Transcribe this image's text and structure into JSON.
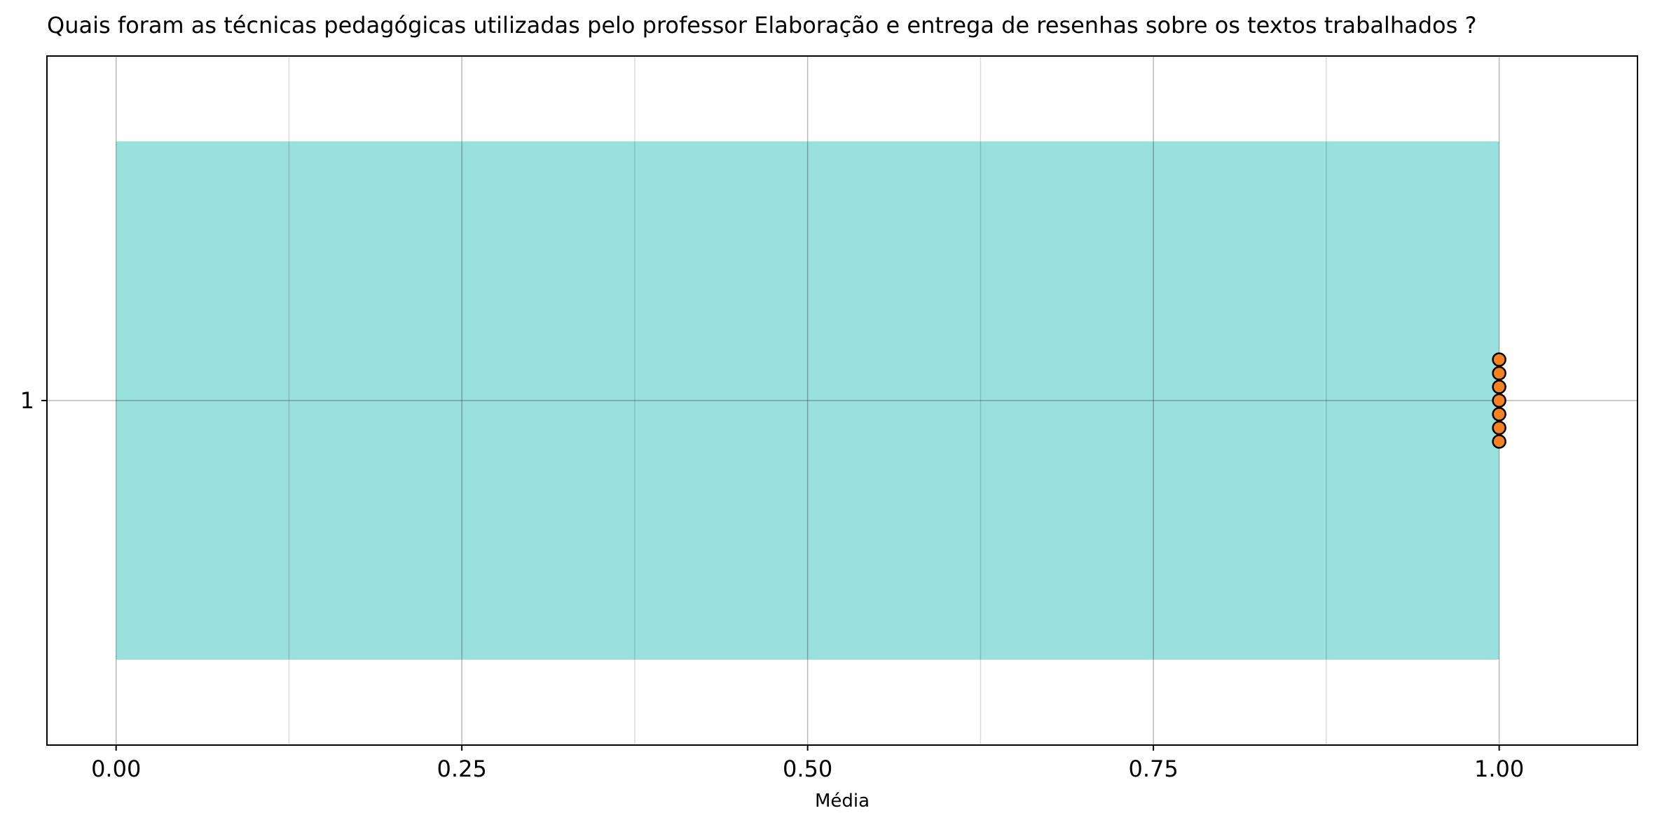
{
  "chart_data": {
    "type": "bar",
    "orientation": "horizontal",
    "title": "Quais foram as técnicas pedagógicas utilizadas pelo professor  Elaboração e entrega de resenhas sobre os textos trabalhados ?",
    "xlabel": "Média",
    "ylabel": "",
    "categories": [
      "1"
    ],
    "values": [
      1.0
    ],
    "points": [
      1.0,
      1.0,
      1.0,
      1.0,
      1.0,
      1.0,
      1.0
    ],
    "xlim": [
      -0.05,
      1.1
    ],
    "xticks": [
      "0.00",
      "0.25",
      "0.50",
      "0.75",
      "1.00"
    ],
    "xtick_values": [
      0.0,
      0.25,
      0.5,
      0.75,
      1.0
    ],
    "minor_grid_values": [
      0.125,
      0.375,
      0.625,
      0.875
    ],
    "grid": true,
    "bar_color": "#9ae0dd",
    "point_color": "#f58220",
    "point_edge_color": "#000000"
  }
}
